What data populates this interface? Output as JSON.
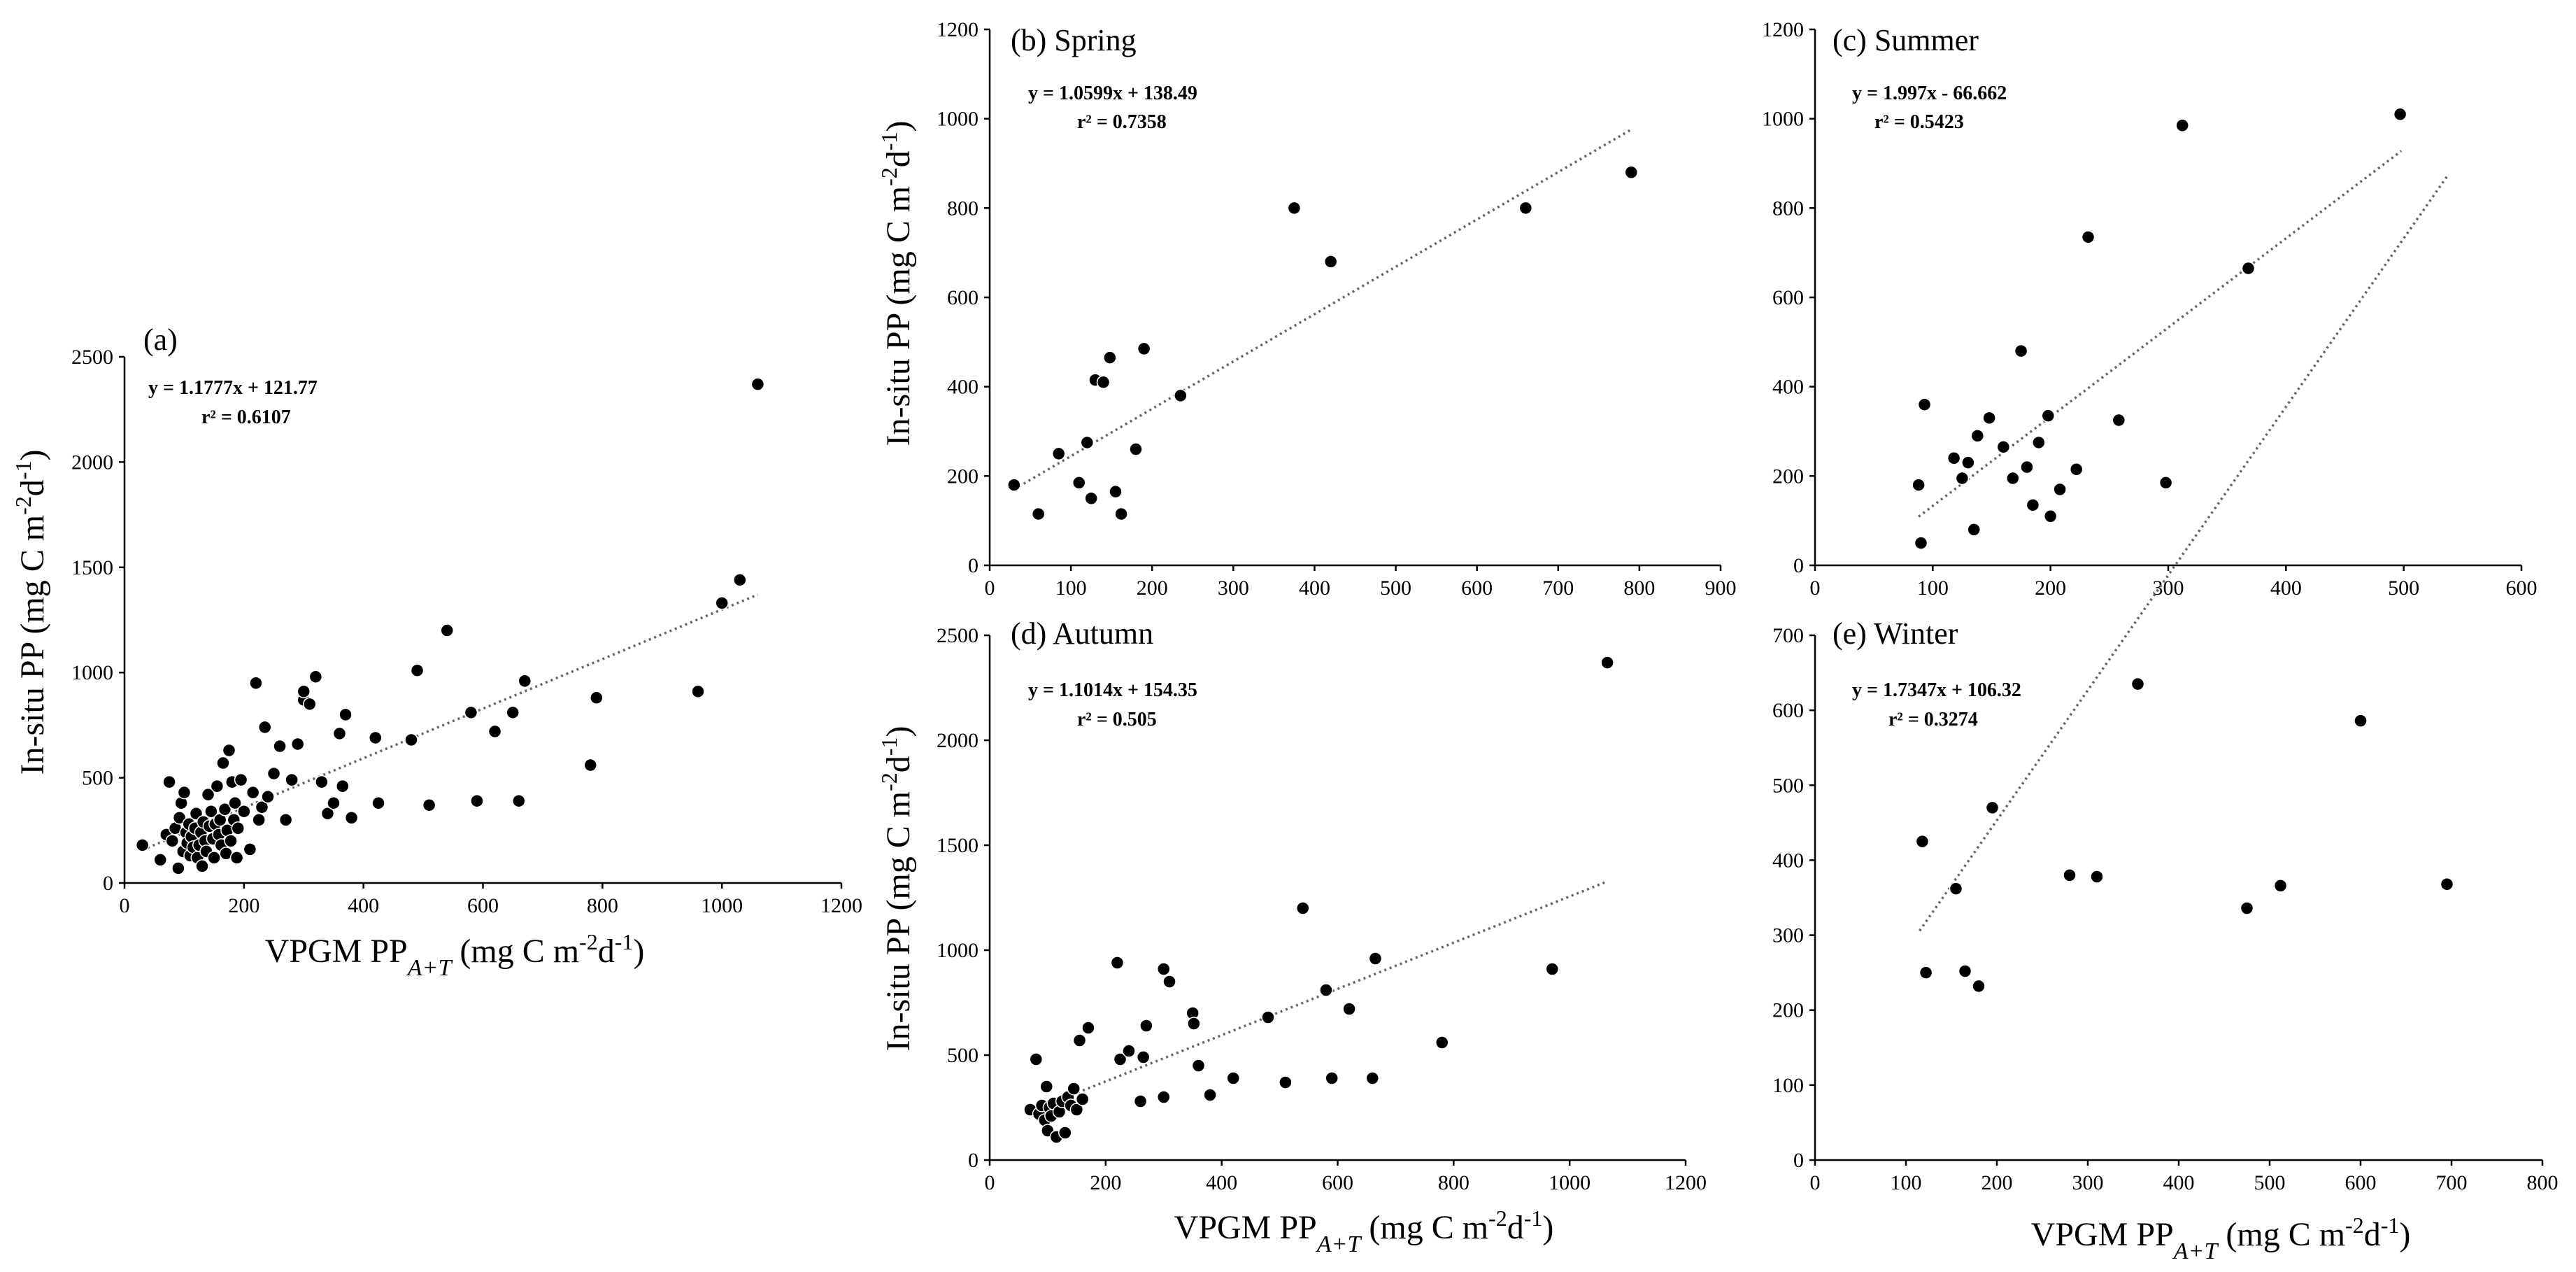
{
  "figure": {
    "y_label_main": "In-situ PP (mg C m",
    "y_label_exp1": "-2",
    "y_label_mid": "d",
    "y_label_exp2": "-1",
    "y_label_end": ")",
    "x_label_main": "VPGM PP",
    "x_label_sub": "A+T",
    "x_label_unit": " (mg C m",
    "x_label_exp1": "-2",
    "x_label_mid": "d",
    "x_label_exp2": "-1",
    "x_label_end": ")"
  },
  "chart_data": [
    {
      "id": "a",
      "type": "scatter",
      "title": "(a)",
      "equation": "y = 1.1777x + 121.77",
      "r2": "r² = 0.6107",
      "slope": 1.1777,
      "intercept": 121.77,
      "xlim": [
        0,
        1200
      ],
      "xticks": [
        0,
        200,
        400,
        600,
        800,
        1000,
        1200
      ],
      "ylim": [
        0,
        2500
      ],
      "yticks": [
        0,
        500,
        1000,
        1500,
        2000,
        2500
      ],
      "trend_x": [
        30,
        1060
      ],
      "points": [
        [
          30,
          180
        ],
        [
          60,
          110
        ],
        [
          70,
          230
        ],
        [
          75,
          480
        ],
        [
          80,
          200
        ],
        [
          85,
          260
        ],
        [
          90,
          70
        ],
        [
          92,
          310
        ],
        [
          95,
          380
        ],
        [
          98,
          150
        ],
        [
          100,
          430
        ],
        [
          103,
          240
        ],
        [
          105,
          190
        ],
        [
          108,
          280
        ],
        [
          110,
          130
        ],
        [
          112,
          220
        ],
        [
          115,
          170
        ],
        [
          118,
          260
        ],
        [
          120,
          330
        ],
        [
          122,
          120
        ],
        [
          125,
          180
        ],
        [
          128,
          240
        ],
        [
          130,
          80
        ],
        [
          132,
          290
        ],
        [
          135,
          200
        ],
        [
          137,
          150
        ],
        [
          140,
          420
        ],
        [
          142,
          270
        ],
        [
          145,
          340
        ],
        [
          148,
          210
        ],
        [
          150,
          120
        ],
        [
          152,
          280
        ],
        [
          155,
          460
        ],
        [
          158,
          230
        ],
        [
          160,
          300
        ],
        [
          162,
          180
        ],
        [
          165,
          570
        ],
        [
          168,
          350
        ],
        [
          170,
          140
        ],
        [
          172,
          250
        ],
        [
          175,
          630
        ],
        [
          178,
          200
        ],
        [
          180,
          480
        ],
        [
          183,
          300
        ],
        [
          185,
          380
        ],
        [
          188,
          120
        ],
        [
          190,
          260
        ],
        [
          195,
          490
        ],
        [
          200,
          340
        ],
        [
          210,
          160
        ],
        [
          215,
          430
        ],
        [
          220,
          950
        ],
        [
          225,
          300
        ],
        [
          230,
          360
        ],
        [
          235,
          740
        ],
        [
          240,
          410
        ],
        [
          250,
          520
        ],
        [
          260,
          650
        ],
        [
          270,
          300
        ],
        [
          280,
          490
        ],
        [
          290,
          660
        ],
        [
          300,
          870
        ],
        [
          300,
          910
        ],
        [
          310,
          850
        ],
        [
          320,
          980
        ],
        [
          330,
          480
        ],
        [
          340,
          330
        ],
        [
          350,
          380
        ],
        [
          360,
          710
        ],
        [
          365,
          460
        ],
        [
          370,
          800
        ],
        [
          380,
          310
        ],
        [
          420,
          690
        ],
        [
          425,
          380
        ],
        [
          480,
          680
        ],
        [
          490,
          1010
        ],
        [
          510,
          370
        ],
        [
          540,
          1200
        ],
        [
          580,
          810
        ],
        [
          590,
          390
        ],
        [
          620,
          720
        ],
        [
          650,
          810
        ],
        [
          660,
          390
        ],
        [
          670,
          960
        ],
        [
          780,
          560
        ],
        [
          790,
          880
        ],
        [
          960,
          910
        ],
        [
          1000,
          1330
        ],
        [
          1030,
          1440
        ],
        [
          1060,
          2370
        ]
      ]
    },
    {
      "id": "b",
      "type": "scatter",
      "title": "(b) Spring",
      "equation": "y = 1.0599x + 138.49",
      "r2": "r² = 0.7358",
      "slope": 1.0599,
      "intercept": 138.49,
      "xlim": [
        0,
        900
      ],
      "xticks": [
        0,
        100,
        200,
        300,
        400,
        500,
        600,
        700,
        800,
        900
      ],
      "ylim": [
        0,
        1200
      ],
      "yticks": [
        0,
        200,
        400,
        600,
        800,
        1000,
        1200
      ],
      "trend_x": [
        30,
        790
      ],
      "points": [
        [
          30,
          180
        ],
        [
          60,
          115
        ],
        [
          85,
          250
        ],
        [
          110,
          185
        ],
        [
          120,
          275
        ],
        [
          125,
          150
        ],
        [
          130,
          415
        ],
        [
          140,
          410
        ],
        [
          148,
          465
        ],
        [
          155,
          165
        ],
        [
          162,
          115
        ],
        [
          180,
          260
        ],
        [
          190,
          485
        ],
        [
          235,
          380
        ],
        [
          375,
          800
        ],
        [
          420,
          680
        ],
        [
          660,
          800
        ],
        [
          790,
          880
        ]
      ]
    },
    {
      "id": "c",
      "type": "scatter",
      "title": "(c) Summer",
      "equation": "y = 1.997x - 66.662",
      "r2": "r² = 0.5423",
      "slope": 1.997,
      "intercept": -66.662,
      "xlim": [
        0,
        600
      ],
      "xticks": [
        0,
        100,
        200,
        300,
        400,
        500,
        600
      ],
      "ylim": [
        0,
        1200
      ],
      "yticks": [
        0,
        200,
        400,
        600,
        800,
        1000,
        1200
      ],
      "trend_x": [
        88,
        498
      ],
      "points": [
        [
          88,
          180
        ],
        [
          90,
          50
        ],
        [
          93,
          360
        ],
        [
          118,
          240
        ],
        [
          125,
          195
        ],
        [
          130,
          230
        ],
        [
          135,
          80
        ],
        [
          138,
          290
        ],
        [
          148,
          330
        ],
        [
          160,
          265
        ],
        [
          168,
          195
        ],
        [
          175,
          480
        ],
        [
          180,
          220
        ],
        [
          185,
          135
        ],
        [
          190,
          275
        ],
        [
          198,
          335
        ],
        [
          200,
          110
        ],
        [
          208,
          170
        ],
        [
          222,
          215
        ],
        [
          232,
          735
        ],
        [
          258,
          325
        ],
        [
          298,
          185
        ],
        [
          312,
          985
        ],
        [
          368,
          665
        ],
        [
          497,
          1010
        ]
      ]
    },
    {
      "id": "d",
      "type": "scatter",
      "title": "(d) Autumn",
      "equation": "y = 1.1014x + 154.35",
      "r2": "r² = 0.505",
      "slope": 1.1014,
      "intercept": 154.35,
      "xlim": [
        0,
        1200
      ],
      "xticks": [
        0,
        200,
        400,
        600,
        800,
        1000,
        1200
      ],
      "ylim": [
        0,
        2500
      ],
      "yticks": [
        0,
        500,
        1000,
        1500,
        2000,
        2500
      ],
      "trend_x": [
        80,
        1065
      ],
      "points": [
        [
          70,
          240
        ],
        [
          80,
          480
        ],
        [
          85,
          220
        ],
        [
          90,
          260
        ],
        [
          95,
          190
        ],
        [
          98,
          350
        ],
        [
          100,
          140
        ],
        [
          103,
          250
        ],
        [
          106,
          210
        ],
        [
          110,
          270
        ],
        [
          115,
          110
        ],
        [
          120,
          230
        ],
        [
          125,
          280
        ],
        [
          130,
          130
        ],
        [
          135,
          300
        ],
        [
          140,
          260
        ],
        [
          145,
          340
        ],
        [
          150,
          240
        ],
        [
          155,
          570
        ],
        [
          160,
          290
        ],
        [
          170,
          630
        ],
        [
          220,
          940
        ],
        [
          225,
          480
        ],
        [
          240,
          520
        ],
        [
          260,
          280
        ],
        [
          265,
          490
        ],
        [
          270,
          640
        ],
        [
          300,
          910
        ],
        [
          300,
          300
        ],
        [
          310,
          850
        ],
        [
          350,
          700
        ],
        [
          352,
          650
        ],
        [
          360,
          450
        ],
        [
          380,
          310
        ],
        [
          420,
          390
        ],
        [
          480,
          680
        ],
        [
          510,
          370
        ],
        [
          540,
          1200
        ],
        [
          580,
          810
        ],
        [
          590,
          390
        ],
        [
          620,
          720
        ],
        [
          660,
          390
        ],
        [
          665,
          960
        ],
        [
          780,
          560
        ],
        [
          970,
          910
        ],
        [
          1065,
          2370
        ]
      ]
    },
    {
      "id": "e",
      "type": "scatter",
      "title": "(e) Winter",
      "equation": "y = 1.7347x + 106.32",
      "r2": "r² = 0.3274",
      "slope": 1.7347,
      "intercept": 106.32,
      "xlim": [
        0,
        800
      ],
      "xticks": [
        0,
        100,
        200,
        300,
        400,
        500,
        600,
        700,
        800
      ],
      "ylim": [
        0,
        700
      ],
      "yticks": [
        0,
        100,
        200,
        300,
        400,
        500,
        600,
        700
      ],
      "trend_x": [
        115,
        695
      ],
      "points": [
        [
          118,
          425
        ],
        [
          122,
          250
        ],
        [
          155,
          362
        ],
        [
          165,
          252
        ],
        [
          180,
          232
        ],
        [
          195,
          470
        ],
        [
          280,
          380
        ],
        [
          310,
          378
        ],
        [
          355,
          635
        ],
        [
          475,
          336
        ],
        [
          512,
          366
        ],
        [
          600,
          586
        ],
        [
          695,
          368
        ]
      ]
    }
  ]
}
